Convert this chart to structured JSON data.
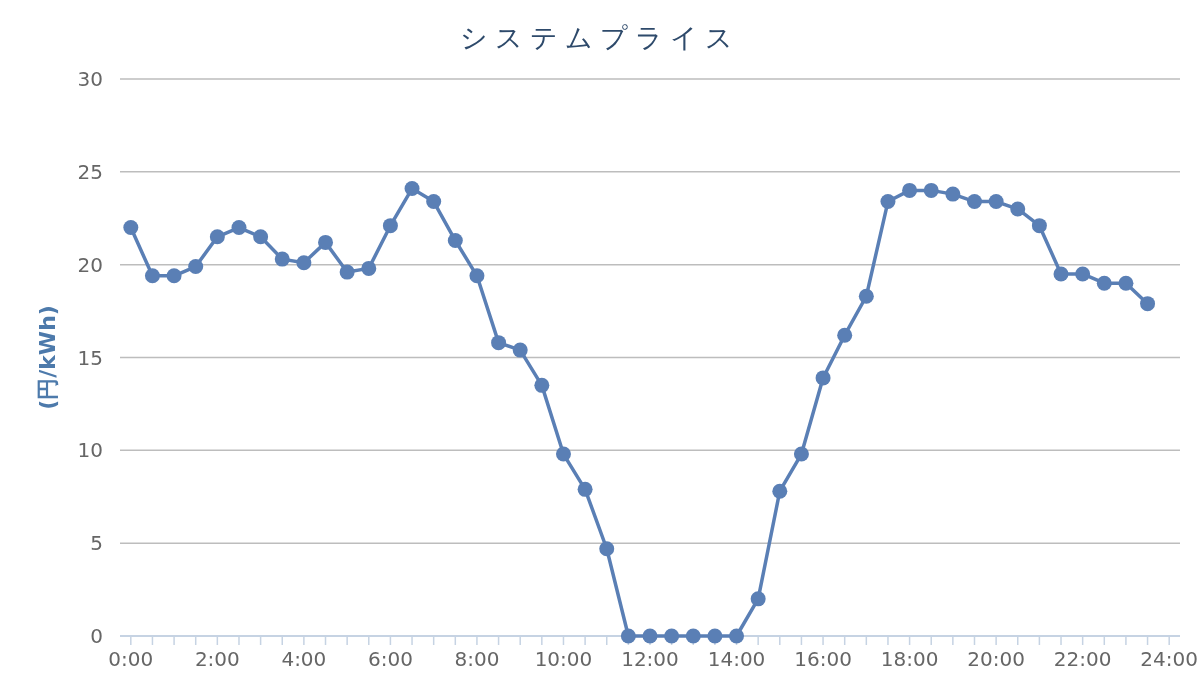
{
  "chart_data": {
    "type": "line",
    "title": "システムプライス",
    "ylabel": "(円/kWh)",
    "x": [
      0,
      0.5,
      1,
      1.5,
      2,
      2.5,
      3,
      3.5,
      4,
      4.5,
      5,
      5.5,
      6,
      6.5,
      7,
      7.5,
      8,
      8.5,
      9,
      9.5,
      10,
      10.5,
      11,
      11.5,
      12,
      12.5,
      13,
      13.5,
      14,
      14.5,
      15,
      15.5,
      16,
      16.5,
      17,
      17.5,
      18,
      18.5,
      19,
      19.5,
      20,
      20.5,
      21,
      21.5,
      22,
      22.5,
      23,
      23.5
    ],
    "series": [
      {
        "color": "#5a7fb5",
        "values": [
          22.0,
          19.4,
          19.4,
          19.9,
          21.5,
          22.0,
          21.5,
          20.3,
          20.1,
          21.2,
          19.6,
          19.8,
          22.1,
          24.1,
          23.4,
          21.3,
          19.4,
          15.8,
          15.4,
          13.5,
          9.8,
          7.9,
          4.7,
          0,
          0,
          0,
          0,
          0,
          0,
          2.0,
          7.8,
          9.8,
          13.9,
          16.2,
          18.3,
          23.4,
          24.0,
          24.0,
          23.8,
          23.4,
          23.4,
          23.0,
          22.1,
          19.5,
          19.5,
          19.0,
          19.0,
          17.9
        ]
      }
    ],
    "xlim": [
      -0.25,
      24.25
    ],
    "ylim": [
      0,
      30
    ],
    "xticks": [
      {
        "value": 0,
        "label": "0:00"
      },
      {
        "value": 0.5,
        "label": null
      },
      {
        "value": 1,
        "label": null
      },
      {
        "value": 1.5,
        "label": null
      },
      {
        "value": 2,
        "label": "2:00"
      },
      {
        "value": 2.5,
        "label": null
      },
      {
        "value": 3,
        "label": null
      },
      {
        "value": 3.5,
        "label": null
      },
      {
        "value": 4,
        "label": "4:00"
      },
      {
        "value": 4.5,
        "label": null
      },
      {
        "value": 5,
        "label": null
      },
      {
        "value": 5.5,
        "label": null
      },
      {
        "value": 6,
        "label": "6:00"
      },
      {
        "value": 6.5,
        "label": null
      },
      {
        "value": 7,
        "label": null
      },
      {
        "value": 7.5,
        "label": null
      },
      {
        "value": 8,
        "label": "8:00"
      },
      {
        "value": 8.5,
        "label": null
      },
      {
        "value": 9,
        "label": null
      },
      {
        "value": 9.5,
        "label": null
      },
      {
        "value": 10,
        "label": "10:00"
      },
      {
        "value": 10.5,
        "label": null
      },
      {
        "value": 11,
        "label": null
      },
      {
        "value": 11.5,
        "label": null
      },
      {
        "value": 12,
        "label": "12:00"
      },
      {
        "value": 12.5,
        "label": null
      },
      {
        "value": 13,
        "label": null
      },
      {
        "value": 13.5,
        "label": null
      },
      {
        "value": 14,
        "label": "14:00"
      },
      {
        "value": 14.5,
        "label": null
      },
      {
        "value": 15,
        "label": null
      },
      {
        "value": 15.5,
        "label": null
      },
      {
        "value": 16,
        "label": "16:00"
      },
      {
        "value": 16.5,
        "label": null
      },
      {
        "value": 17,
        "label": null
      },
      {
        "value": 17.5,
        "label": null
      },
      {
        "value": 18,
        "label": "18:00"
      },
      {
        "value": 18.5,
        "label": null
      },
      {
        "value": 19,
        "label": null
      },
      {
        "value": 19.5,
        "label": null
      },
      {
        "value": 20,
        "label": "20:00"
      },
      {
        "value": 20.5,
        "label": null
      },
      {
        "value": 21,
        "label": null
      },
      {
        "value": 21.5,
        "label": null
      },
      {
        "value": 22,
        "label": "22:00"
      },
      {
        "value": 22.5,
        "label": null
      },
      {
        "value": 23,
        "label": null
      },
      {
        "value": 23.5,
        "label": null
      },
      {
        "value": 24,
        "label": "24:00"
      }
    ],
    "yticks": [
      0,
      5,
      10,
      15,
      20,
      25,
      30
    ],
    "grid": "y",
    "marker": "circle",
    "line_style": "solid"
  }
}
